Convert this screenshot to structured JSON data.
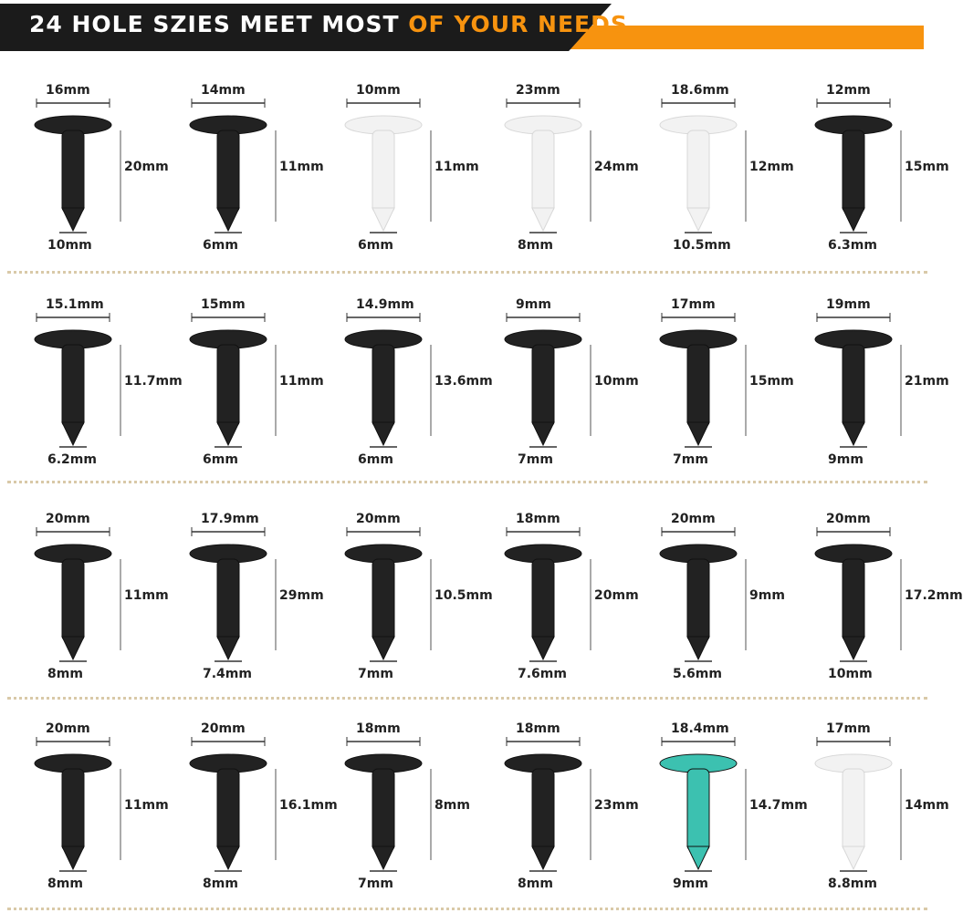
{
  "banner": {
    "title_white": "24 HOLE SZIES MEET MOST ",
    "title_orange": "OF YOUR NEEDS",
    "accent": "#f7930f",
    "dark": "#1b1b1b"
  },
  "rows": [
    {
      "clips": [
        {
          "top": "16mm",
          "side": "20mm",
          "bottom": "10mm",
          "color": "#222222"
        },
        {
          "top": "14mm",
          "side": "11mm",
          "bottom": "6mm",
          "color": "#222222"
        },
        {
          "top": "10mm",
          "side": "11mm",
          "bottom": "6mm",
          "color": "#f2f2f2"
        },
        {
          "top": "23mm",
          "side": "24mm",
          "bottom": "8mm",
          "color": "#f2f2f2"
        },
        {
          "top": "18.6mm",
          "side": "12mm",
          "bottom": "10.5mm",
          "color": "#f2f2f2"
        },
        {
          "top": "12mm",
          "side": "15mm",
          "bottom": "6.3mm",
          "color": "#222222"
        }
      ]
    },
    {
      "clips": [
        {
          "top": "15.1mm",
          "side": "11.7mm",
          "bottom": "6.2mm",
          "color": "#222222"
        },
        {
          "top": "15mm",
          "side": "11mm",
          "bottom": "6mm",
          "color": "#222222"
        },
        {
          "top": "14.9mm",
          "side": "13.6mm",
          "bottom": "6mm",
          "color": "#222222"
        },
        {
          "top": "9mm",
          "side": "10mm",
          "bottom": "7mm",
          "color": "#222222"
        },
        {
          "top": "17mm",
          "side": "15mm",
          "bottom": "7mm",
          "color": "#222222"
        },
        {
          "top": "19mm",
          "side": "21mm",
          "bottom": "9mm",
          "color": "#222222"
        }
      ]
    },
    {
      "clips": [
        {
          "top": "20mm",
          "side": "11mm",
          "bottom": "8mm",
          "color": "#222222"
        },
        {
          "top": "17.9mm",
          "side": "29mm",
          "bottom": "7.4mm",
          "color": "#222222"
        },
        {
          "top": "20mm",
          "side": "10.5mm",
          "bottom": "7mm",
          "color": "#222222"
        },
        {
          "top": "18mm",
          "side": "20mm",
          "bottom": "7.6mm",
          "color": "#222222"
        },
        {
          "top": "20mm",
          "side": "9mm",
          "bottom": "5.6mm",
          "color": "#222222"
        },
        {
          "top": "20mm",
          "side": "17.2mm",
          "bottom": "10mm",
          "color": "#222222"
        }
      ]
    },
    {
      "clips": [
        {
          "top": "20mm",
          "side": "11mm",
          "bottom": "8mm",
          "color": "#222222"
        },
        {
          "top": "20mm",
          "side": "16.1mm",
          "bottom": "8mm",
          "color": "#222222"
        },
        {
          "top": "18mm",
          "side": "8mm",
          "bottom": "7mm",
          "color": "#222222"
        },
        {
          "top": "18mm",
          "side": "23mm",
          "bottom": "8mm",
          "color": "#222222"
        },
        {
          "top": "18.4mm",
          "side": "14.7mm",
          "bottom": "9mm",
          "color": "#3cc1b0"
        },
        {
          "top": "17mm",
          "side": "14mm",
          "bottom": "8.8mm",
          "color": "#f2f2f2"
        }
      ]
    }
  ]
}
